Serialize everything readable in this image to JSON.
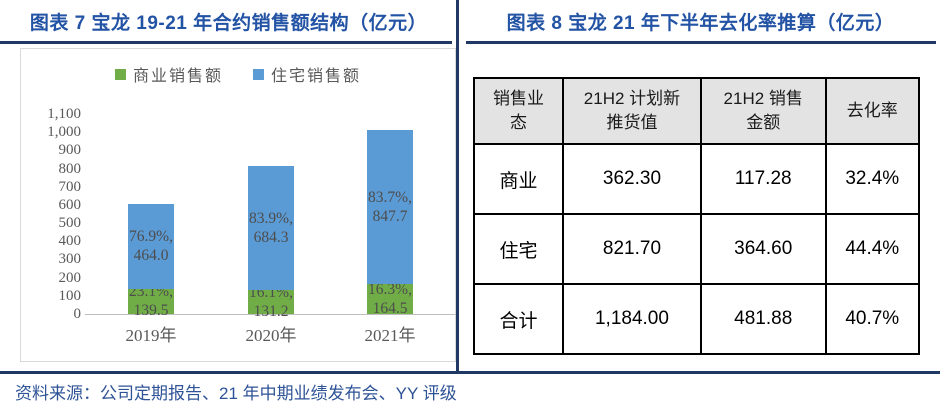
{
  "left_panel": {
    "title": "图表 7 宝龙 19-21 年合约销售额结构（亿元）"
  },
  "right_panel": {
    "title": "图表 8 宝龙 21 年下半年去化率推算（亿元）"
  },
  "chart_data": {
    "type": "bar",
    "stacked": true,
    "title": "宝龙 19-21 年合约销售额结构（亿元）",
    "categories": [
      "2019年",
      "2020年",
      "2021年"
    ],
    "series": [
      {
        "name": "商业销售额",
        "color": "#70AD47",
        "values": [
          139.5,
          131.2,
          164.5
        ],
        "pct_labels": [
          "23.1%",
          "16.1%",
          "16.3%"
        ]
      },
      {
        "name": "住宅销售额",
        "color": "#5B9BD5",
        "values": [
          464.0,
          684.3,
          847.7
        ],
        "pct_labels": [
          "76.9%",
          "83.9%",
          "83.7%"
        ]
      }
    ],
    "xlabel": "",
    "ylabel": "",
    "ylim": [
      0,
      1100
    ],
    "ytick_step": 100,
    "grid": false,
    "legend_position": "top-center"
  },
  "table": {
    "headers": [
      "销售业\n态",
      "21H2 计划新\n推货值",
      "21H2 销售\n金额",
      "去化率"
    ],
    "col_widths_pct": [
      20,
      31,
      28,
      21
    ],
    "rows": [
      [
        "商业",
        "362.30",
        "117.28",
        "32.4%"
      ],
      [
        "住宅",
        "821.70",
        "364.60",
        "44.4%"
      ],
      [
        "合计",
        "1,184.00",
        "481.88",
        "40.7%"
      ]
    ]
  },
  "footer": {
    "source_text": "资料来源：公司定期报告、21 年中期业绩发布会、YY 评级"
  },
  "colors": {
    "title_blue": "#2353A4",
    "rule_navy": "#1F3864",
    "footer_blue": "#2E5396",
    "bar_green": "#70AD47",
    "bar_blue": "#5B9BD5",
    "chart_text_gray": "#595959",
    "data_label_gray": "#4D4D4D",
    "table_header_bg": "#E3E3E3",
    "chart_border_gray": "#D9D9D9",
    "axis_line_gray": "#BFBFBF"
  }
}
